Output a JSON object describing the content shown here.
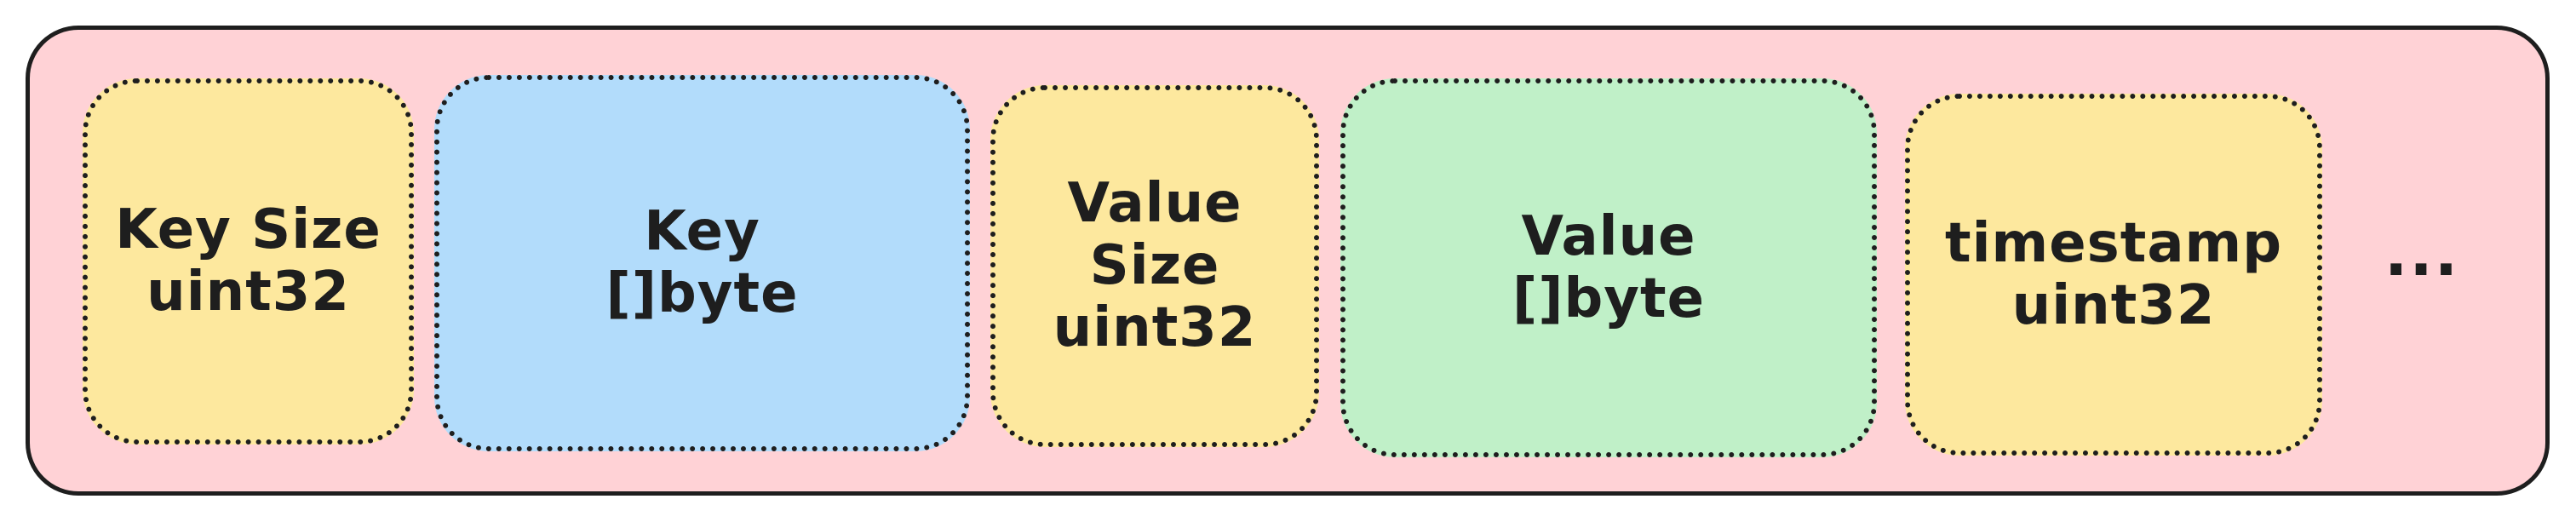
{
  "fields": [
    {
      "lines": [
        "Key Size",
        "uint32"
      ],
      "color": "#fde89e"
    },
    {
      "lines": [
        "Key",
        "[]byte"
      ],
      "color": "#b2dcfb"
    },
    {
      "lines": [
        "Value",
        "Size",
        "uint32"
      ],
      "color": "#fde89e"
    },
    {
      "lines": [
        "Value",
        "[]byte"
      ],
      "color": "#c0f0c8"
    },
    {
      "lines": [
        "timestamp",
        "uint32"
      ],
      "color": "#fde89e"
    }
  ],
  "ellipsis": "...",
  "colors": {
    "container_fill": "#ffd2d6",
    "stroke": "#1e1e1e"
  }
}
